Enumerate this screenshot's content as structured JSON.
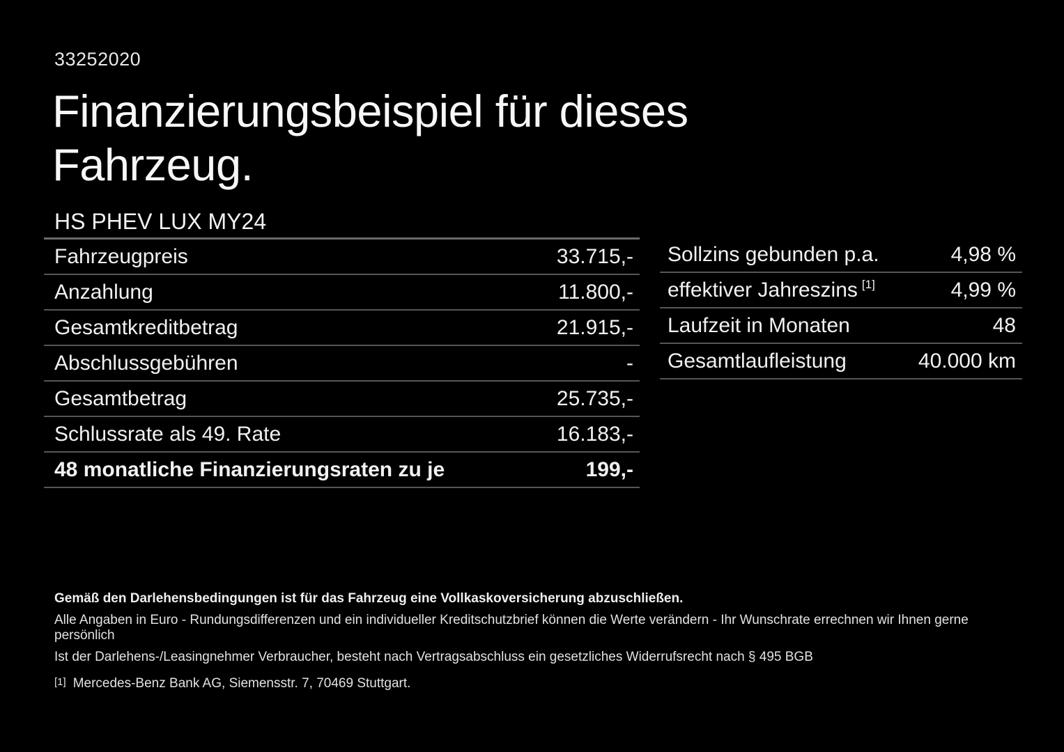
{
  "document": {
    "id": "33252020",
    "title_line1": "Finanzierungsbeispiel für dieses",
    "title_line2": "Fahrzeug.",
    "model": "HS PHEV LUX MY24"
  },
  "left_table": {
    "rows": [
      {
        "label": "Fahrzeugpreis",
        "value": "33.715,-"
      },
      {
        "label": "Anzahlung",
        "value": "11.800,-"
      },
      {
        "label": "Gesamtkreditbetrag",
        "value": "21.915,-"
      },
      {
        "label": "Abschlussgebühren",
        "value": "-"
      },
      {
        "label": "Gesamtbetrag",
        "value": "25.735,-"
      },
      {
        "label": "Schlussrate als 49. Rate",
        "value": "16.183,-"
      },
      {
        "label": "48 monatliche Finanzierungsraten zu je",
        "value": "199,-",
        "bold": true
      }
    ]
  },
  "right_table": {
    "rows": [
      {
        "label": "Sollzins gebunden p.a.",
        "value": "4,98 %"
      },
      {
        "label": "effektiver Jahreszins",
        "sup": "[1]",
        "value": "4,99 %"
      },
      {
        "label": "Laufzeit in Monaten",
        "value": "48"
      },
      {
        "label": "Gesamtlaufleistung",
        "value": "40.000 km"
      }
    ]
  },
  "footer": {
    "note_bold": "Gemäß den Darlehensbedingungen ist für das Fahrzeug eine Vollkaskoversicherung abzuschließen.",
    "note_line2": "Alle Angaben in Euro - Rundungsdifferenzen und ein individueller Kreditschutzbrief können die Werte verändern - Ihr Wunschrate errechnen wir Ihnen gerne persönlich",
    "note_line3": "Ist der Darlehens-/Leasingnehmer Verbraucher, besteht nach Vertragsabschluss ein gesetzliches Widerrufsrecht nach § 495 BGB",
    "footnote_marker": "[1]",
    "footnote_text": "Mercedes-Benz Bank AG, Siemensstr. 7, 70469 Stuttgart."
  },
  "colors": {
    "background": "#000000",
    "text": "#f0f0f0",
    "divider": "#565656"
  }
}
